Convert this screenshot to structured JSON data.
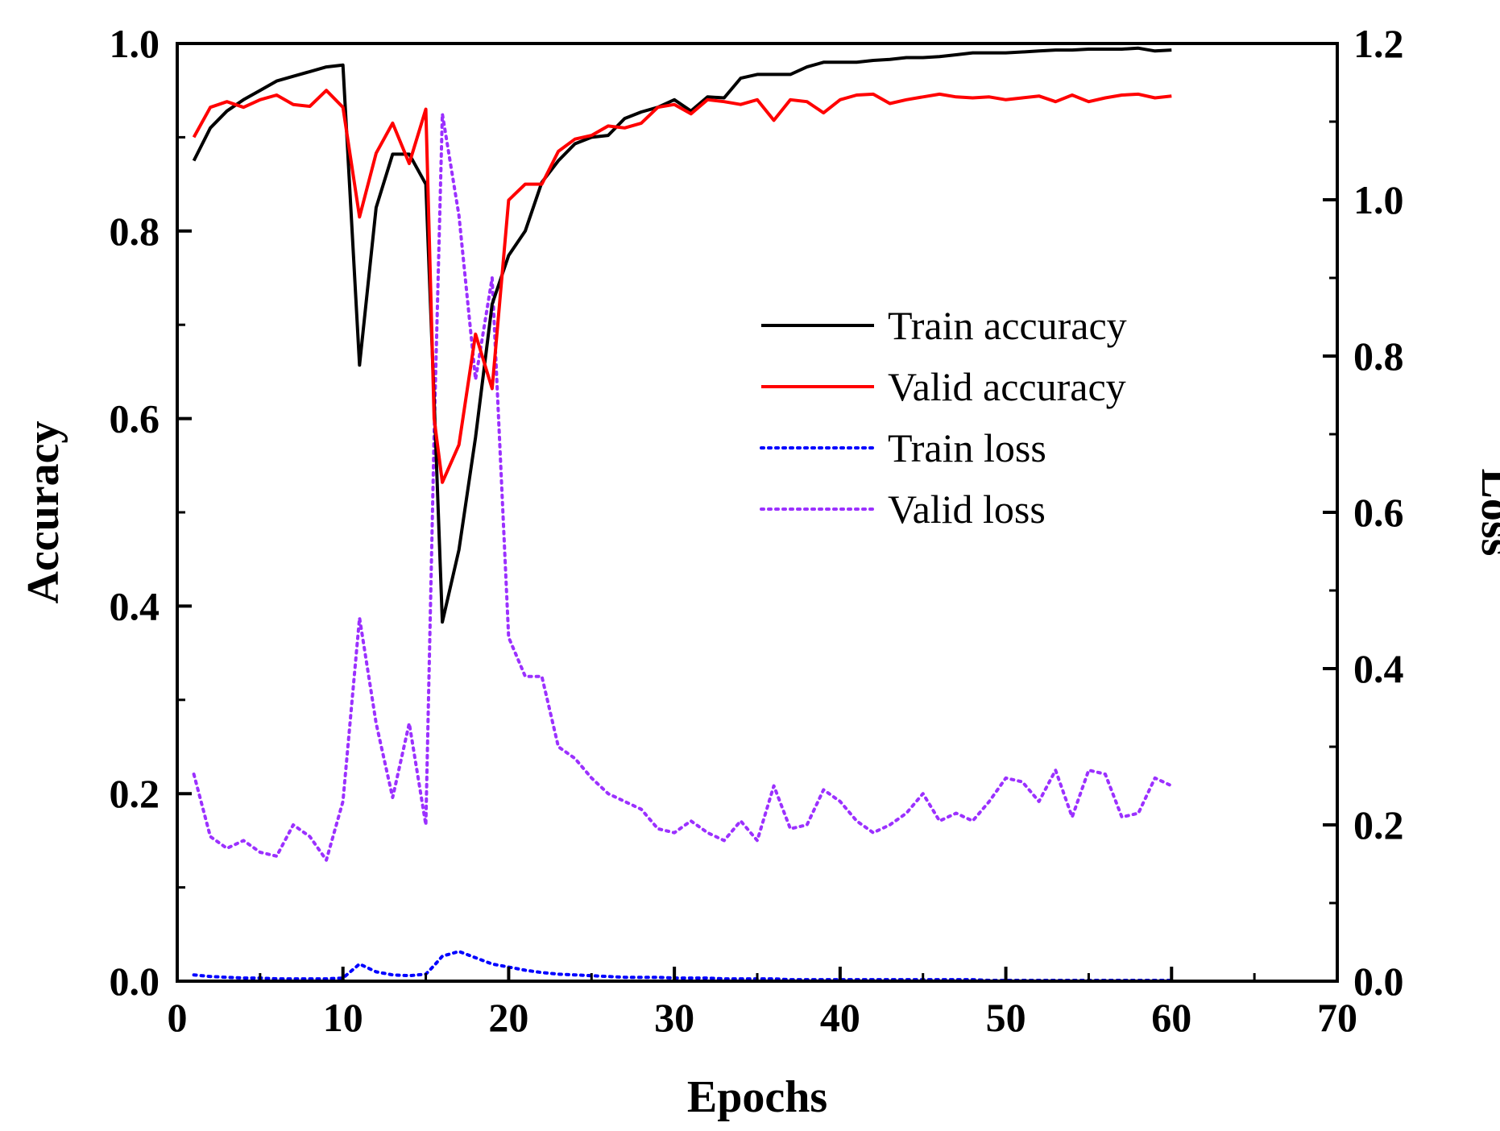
{
  "chart_data": {
    "type": "line",
    "xlabel": "Epochs",
    "ylabel_left": "Accuracy",
    "ylabel_right": "Loss",
    "xlim": [
      0,
      70
    ],
    "ylim_left": [
      0,
      1.0
    ],
    "ylim_right": [
      0,
      1.2
    ],
    "x_ticks": [
      "0",
      "10",
      "20",
      "30",
      "40",
      "50",
      "60",
      "70"
    ],
    "y_left_ticks": [
      "0.0",
      "0.2",
      "0.4",
      "0.6",
      "0.8",
      "1.0"
    ],
    "y_right_ticks": [
      "0.0",
      "0.2",
      "0.4",
      "0.6",
      "0.8",
      "1.0",
      "1.2"
    ],
    "grid": false,
    "legend_position": "center-right",
    "epochs": [
      1,
      2,
      3,
      4,
      5,
      6,
      7,
      8,
      9,
      10,
      11,
      12,
      13,
      14,
      15,
      15.5,
      16,
      17,
      18,
      19,
      20,
      21,
      22,
      23,
      24,
      25,
      26,
      27,
      28,
      29,
      30,
      31,
      32,
      33,
      34,
      35,
      36,
      37,
      38,
      39,
      40,
      41,
      42,
      43,
      44,
      45,
      46,
      47,
      48,
      49,
      50,
      51,
      52,
      53,
      54,
      55,
      56,
      57,
      58,
      59,
      60
    ],
    "series": [
      {
        "name": "Train accuracy",
        "axis": "left",
        "color": "#000000",
        "style": "solid",
        "values": [
          0.875,
          0.91,
          0.928,
          0.94,
          0.95,
          0.96,
          0.965,
          0.97,
          0.975,
          0.977,
          0.657,
          0.825,
          0.882,
          0.882,
          0.85,
          0.62,
          0.383,
          0.46,
          0.58,
          0.722,
          0.774,
          0.8,
          0.852,
          0.875,
          0.893,
          0.9,
          0.902,
          0.92,
          0.927,
          0.932,
          0.94,
          0.928,
          0.943,
          0.942,
          0.963,
          0.967,
          0.967,
          0.967,
          0.975,
          0.98,
          0.98,
          0.98,
          0.982,
          0.983,
          0.985,
          0.985,
          0.986,
          0.988,
          0.99,
          0.99,
          0.99,
          0.991,
          0.992,
          0.993,
          0.993,
          0.994,
          0.994,
          0.994,
          0.995,
          0.992,
          0.993
        ]
      },
      {
        "name": "Valid accuracy",
        "axis": "left",
        "color": "#ff0000",
        "style": "solid",
        "values": [
          0.9,
          0.932,
          0.938,
          0.932,
          0.94,
          0.945,
          0.935,
          0.933,
          0.95,
          0.932,
          0.815,
          0.883,
          0.915,
          0.872,
          0.93,
          0.6,
          0.532,
          0.572,
          0.69,
          0.632,
          0.833,
          0.85,
          0.85,
          0.885,
          0.898,
          0.902,
          0.912,
          0.91,
          0.915,
          0.932,
          0.935,
          0.925,
          0.94,
          0.938,
          0.935,
          0.94,
          0.918,
          0.94,
          0.938,
          0.926,
          0.94,
          0.945,
          0.946,
          0.936,
          0.94,
          0.943,
          0.946,
          0.943,
          0.942,
          0.943,
          0.94,
          0.942,
          0.944,
          0.938,
          0.945,
          0.938,
          0.942,
          0.945,
          0.946,
          0.942,
          0.944
        ]
      },
      {
        "name": "Train loss",
        "axis": "right",
        "color": "#0000ff",
        "style": "dotted",
        "values": [
          0.008,
          0.006,
          0.005,
          0.004,
          0.004,
          0.003,
          0.003,
          0.003,
          0.003,
          0.004,
          0.022,
          0.012,
          0.008,
          0.007,
          0.009,
          0.02,
          0.032,
          0.038,
          0.03,
          0.022,
          0.018,
          0.014,
          0.011,
          0.009,
          0.008,
          0.007,
          0.006,
          0.005,
          0.005,
          0.005,
          0.004,
          0.004,
          0.004,
          0.003,
          0.003,
          0.003,
          0.003,
          0.002,
          0.002,
          0.002,
          0.002,
          0.002,
          0.002,
          0.002,
          0.002,
          0.002,
          0.002,
          0.002,
          0.002,
          0.001,
          0.001,
          0.001,
          0.001,
          0.001,
          0.001,
          0.001,
          0.001,
          0.001,
          0.001,
          0.001,
          0.001
        ]
      },
      {
        "name": "Valid loss",
        "axis": "right",
        "color": "#9b30ff",
        "style": "dotted",
        "values": [
          0.265,
          0.185,
          0.17,
          0.18,
          0.165,
          0.16,
          0.2,
          0.185,
          0.155,
          0.23,
          0.465,
          0.33,
          0.235,
          0.33,
          0.2,
          0.7,
          1.11,
          0.98,
          0.77,
          0.9,
          0.44,
          0.39,
          0.39,
          0.3,
          0.285,
          0.26,
          0.24,
          0.23,
          0.22,
          0.195,
          0.19,
          0.205,
          0.19,
          0.18,
          0.205,
          0.18,
          0.25,
          0.195,
          0.2,
          0.245,
          0.23,
          0.205,
          0.19,
          0.2,
          0.215,
          0.24,
          0.205,
          0.215,
          0.205,
          0.23,
          0.26,
          0.255,
          0.23,
          0.27,
          0.21,
          0.27,
          0.265,
          0.21,
          0.215,
          0.26,
          0.25
        ]
      }
    ]
  }
}
